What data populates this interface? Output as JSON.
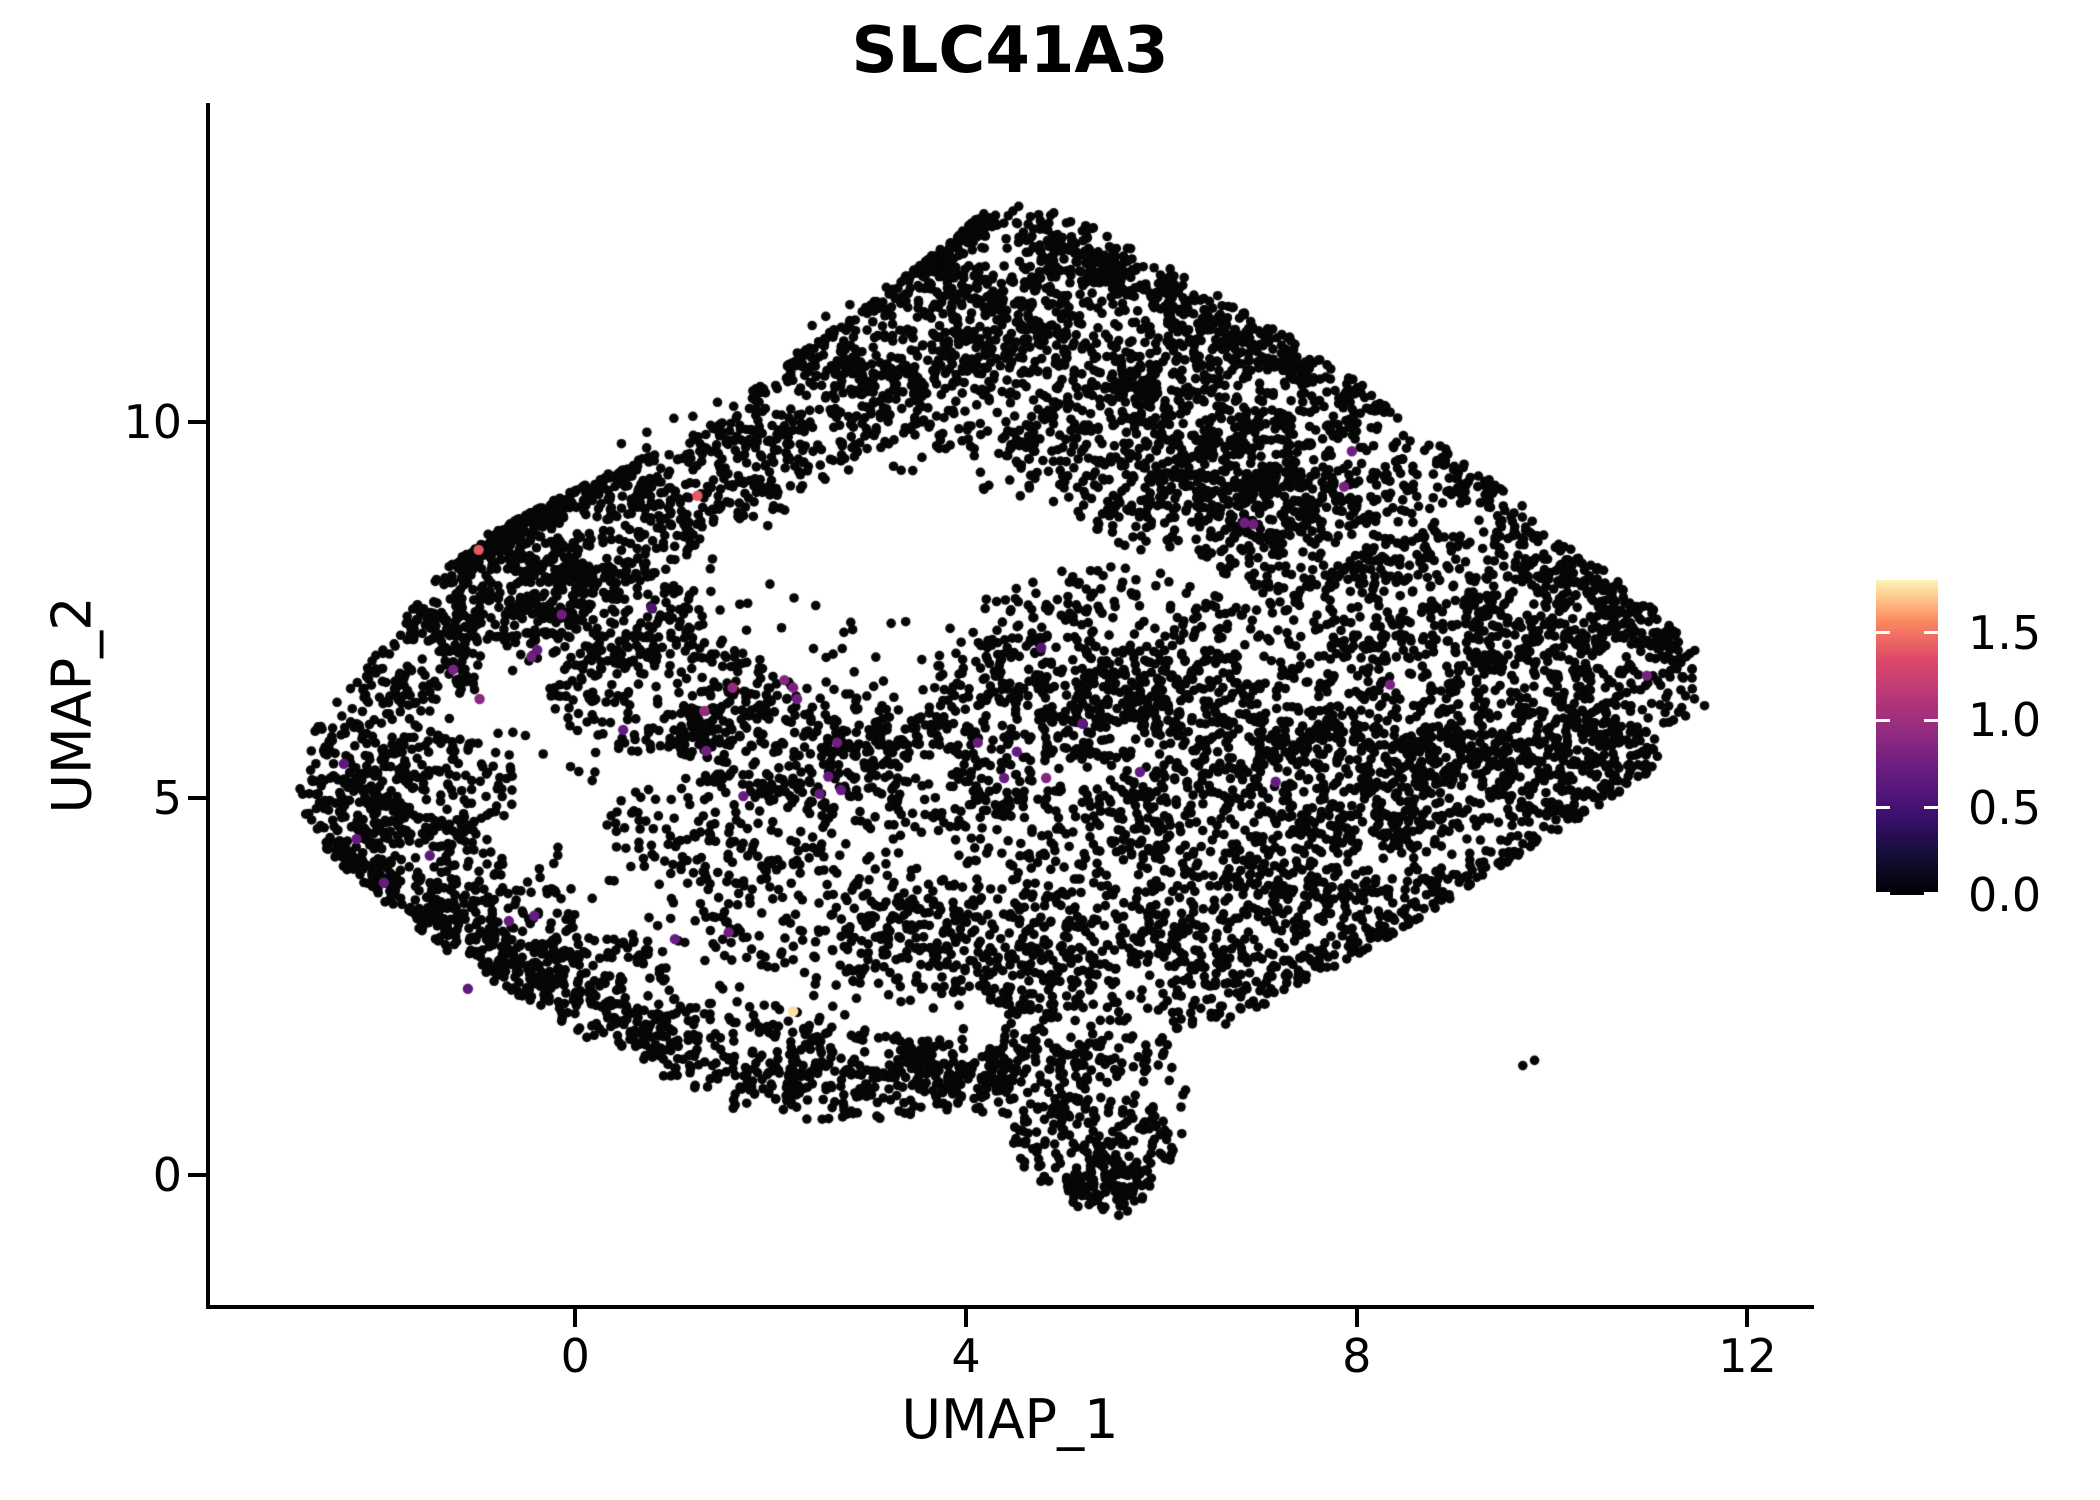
{
  "title": "SLC41A3",
  "axes": {
    "x_label": "UMAP_1",
    "y_label": "UMAP_2",
    "x_ticks": [
      {
        "value": 0,
        "label": "0"
      },
      {
        "value": 4,
        "label": "4"
      },
      {
        "value": 8,
        "label": "8"
      },
      {
        "value": 12,
        "label": "12"
      }
    ],
    "y_ticks": [
      {
        "value": 10,
        "label": "10"
      },
      {
        "value": 5,
        "label": "5"
      },
      {
        "value": 0,
        "label": "0"
      }
    ],
    "x_range": [
      -3.74,
      12.64
    ],
    "y_range": [
      -1.73,
      14.21
    ]
  },
  "colorbar": {
    "ticks": [
      {
        "value": 1.5,
        "label": "1.5"
      },
      {
        "value": 1.0,
        "label": "1.0"
      },
      {
        "value": 0.5,
        "label": "0.5"
      },
      {
        "value": 0.0,
        "label": "0.0"
      }
    ],
    "vmin": 0.0,
    "vmax": 1.8,
    "colormap": [
      [
        0,
        "#000004"
      ],
      [
        0.13,
        "#140e36"
      ],
      [
        0.25,
        "#3b0f70"
      ],
      [
        0.38,
        "#641a80"
      ],
      [
        0.5,
        "#8c2981"
      ],
      [
        0.63,
        "#b73779"
      ],
      [
        0.75,
        "#de4968"
      ],
      [
        0.87,
        "#fc8961"
      ],
      [
        0.94,
        "#fec488"
      ],
      [
        1,
        "#fcf4b5"
      ]
    ]
  },
  "chart_data": {
    "type": "scatter",
    "title": "SLC41A3",
    "xlabel": "UMAP_1",
    "ylabel": "UMAP_2",
    "xlim": [
      -3.74,
      12.64
    ],
    "ylim": [
      -1.73,
      14.21
    ],
    "grid": false,
    "legend_position": "right-colorbar",
    "description": "UMAP feature plot of SLC41A3 expression; ~11000 cells, nearly all with zero expression (black), sparse expressing cells colored by magma colormap 0-1.8",
    "point_radius_px": 4.8,
    "zero_color": "#060606",
    "seed": 11,
    "count_scale": 0.75,
    "background_count": 1100,
    "outline": [
      [
        -2.9,
        4.9
      ],
      [
        -2.65,
        6.0
      ],
      [
        -2.0,
        7.0
      ],
      [
        -1.4,
        8.0
      ],
      [
        -0.55,
        8.75
      ],
      [
        0.4,
        9.35
      ],
      [
        1.3,
        9.9
      ],
      [
        2.3,
        10.9
      ],
      [
        3.3,
        11.85
      ],
      [
        4.2,
        12.8
      ],
      [
        4.85,
        12.95
      ],
      [
        5.6,
        12.4
      ],
      [
        6.5,
        11.75
      ],
      [
        7.3,
        11.15
      ],
      [
        8.0,
        10.55
      ],
      [
        8.8,
        9.75
      ],
      [
        9.6,
        9.0
      ],
      [
        10.4,
        8.2
      ],
      [
        11.1,
        7.5
      ],
      [
        11.55,
        6.85
      ],
      [
        11.65,
        6.3
      ],
      [
        11.2,
        5.55
      ],
      [
        10.5,
        4.9
      ],
      [
        9.8,
        4.35
      ],
      [
        9.0,
        3.7
      ],
      [
        8.2,
        3.05
      ],
      [
        7.4,
        2.5
      ],
      [
        6.7,
        2.0
      ],
      [
        6.35,
        1.5
      ],
      [
        6.3,
        0.8
      ],
      [
        6.0,
        -0.1
      ],
      [
        5.6,
        -0.55
      ],
      [
        5.1,
        -0.5
      ],
      [
        4.65,
        -0.1
      ],
      [
        4.5,
        0.4
      ],
      [
        4.1,
        0.85
      ],
      [
        3.3,
        0.75
      ],
      [
        2.4,
        0.7
      ],
      [
        1.6,
        0.85
      ],
      [
        0.9,
        1.3
      ],
      [
        0.2,
        1.75
      ],
      [
        -0.5,
        2.3
      ],
      [
        -1.2,
        2.85
      ],
      [
        -1.8,
        3.45
      ],
      [
        -2.4,
        4.1
      ]
    ],
    "clusters": [
      [
        4.5,
        12.1,
        1.3,
        0.8,
        260
      ],
      [
        3.3,
        11.2,
        1.5,
        0.9,
        320
      ],
      [
        5.6,
        11.3,
        1.6,
        0.9,
        330
      ],
      [
        6.9,
        10.5,
        1.4,
        0.9,
        280
      ],
      [
        2.2,
        10.2,
        1.4,
        0.8,
        260
      ],
      [
        4.5,
        10.4,
        1.5,
        0.9,
        300
      ],
      [
        1.2,
        9.4,
        1.2,
        0.8,
        240
      ],
      [
        5.9,
        9.6,
        1.5,
        0.9,
        280
      ],
      [
        7.4,
        9.3,
        1.3,
        0.9,
        260
      ],
      [
        0.1,
        8.6,
        1.2,
        0.8,
        280
      ],
      [
        -0.9,
        7.8,
        1.1,
        0.8,
        300
      ],
      [
        0.2,
        7.4,
        1.1,
        0.7,
        260
      ],
      [
        -1.7,
        6.9,
        0.8,
        0.7,
        170
      ],
      [
        -2.2,
        5.5,
        0.75,
        0.85,
        160
      ],
      [
        -2.3,
        4.6,
        0.6,
        0.7,
        130
      ],
      [
        -1.6,
        4.0,
        0.9,
        0.8,
        180
      ],
      [
        -0.8,
        3.2,
        0.9,
        0.8,
        170
      ],
      [
        0.1,
        2.4,
        1.0,
        0.8,
        180
      ],
      [
        -1.4,
        5.2,
        0.8,
        0.7,
        150
      ],
      [
        0.9,
        6.4,
        1.2,
        0.8,
        260
      ],
      [
        2.2,
        5.8,
        1.3,
        0.8,
        270
      ],
      [
        3.5,
        5.3,
        1.2,
        0.8,
        260
      ],
      [
        1.5,
        4.6,
        1.2,
        0.8,
        200
      ],
      [
        2.7,
        3.4,
        1.4,
        0.9,
        240
      ],
      [
        4.1,
        3.0,
        1.4,
        0.9,
        260
      ],
      [
        5.5,
        2.7,
        1.4,
        0.9,
        260
      ],
      [
        6.8,
        3.3,
        1.3,
        0.9,
        260
      ],
      [
        7.9,
        4.0,
        1.2,
        0.9,
        250
      ],
      [
        1.6,
        1.7,
        1.1,
        0.6,
        170
      ],
      [
        3.0,
        1.3,
        1.2,
        0.6,
        170
      ],
      [
        4.4,
        1.4,
        1.1,
        0.6,
        160
      ],
      [
        5.3,
        0.4,
        0.85,
        0.7,
        230
      ],
      [
        5.5,
        -0.2,
        0.5,
        0.4,
        90
      ],
      [
        5.4,
        7.0,
        1.5,
        1.1,
        280
      ],
      [
        6.9,
        6.6,
        1.4,
        1.1,
        290
      ],
      [
        8.4,
        6.1,
        1.3,
        1.1,
        290
      ],
      [
        9.7,
        6.0,
        1.1,
        1.0,
        260
      ],
      [
        10.7,
        6.6,
        0.75,
        0.9,
        200
      ],
      [
        8.9,
        7.6,
        1.3,
        0.9,
        280
      ],
      [
        7.6,
        8.5,
        1.3,
        0.9,
        300
      ],
      [
        6.3,
        9.0,
        1.2,
        0.8,
        260
      ],
      [
        9.9,
        7.5,
        0.9,
        0.7,
        200
      ],
      [
        9.0,
        5.2,
        1.0,
        0.8,
        200
      ],
      [
        10.3,
        5.4,
        0.8,
        0.7,
        160
      ],
      [
        6.0,
        5.9,
        1.3,
        0.9,
        230
      ],
      [
        4.7,
        6.3,
        1.2,
        0.9,
        230
      ],
      [
        8.0,
        5.2,
        1.1,
        0.8,
        220
      ],
      [
        5.1,
        4.4,
        1.3,
        0.8,
        190
      ],
      [
        6.6,
        4.7,
        1.3,
        0.8,
        200
      ]
    ],
    "strips": [
      [
        -1.3,
        8.05,
        4.25,
        12.75,
        0.33,
        420
      ],
      [
        -2.55,
        4.35,
        1.1,
        1.55,
        0.4,
        280
      ],
      [
        1.3,
        1.1,
        6.1,
        1.6,
        0.45,
        230
      ],
      [
        4.6,
        12.6,
        8.3,
        10.15,
        0.5,
        300
      ],
      [
        8.7,
        9.7,
        11.35,
        6.85,
        0.5,
        260
      ],
      [
        11.2,
        5.6,
        6.6,
        1.95,
        0.5,
        280
      ]
    ],
    "voids": [
      [
        3.3,
        8.4,
        1.2,
        0.95
      ],
      [
        6.1,
        7.7,
        0.85,
        0.7
      ],
      [
        9.6,
        4.2,
        0.8,
        0.6
      ],
      [
        0.7,
        4.8,
        0.7,
        0.65
      ],
      [
        4.7,
        8.3,
        0.7,
        0.6
      ]
    ],
    "extra_zero_points": [
      [
        9.7,
        1.45
      ],
      [
        9.82,
        1.52
      ]
    ],
    "expressing_points": [
      [
        1.25,
        9.02,
        1.4
      ],
      [
        -0.99,
        8.3,
        1.4
      ],
      [
        2.23,
        2.17,
        1.75
      ],
      [
        0.78,
        7.53,
        0.55
      ],
      [
        -0.14,
        7.44,
        0.75
      ],
      [
        -0.39,
        6.97,
        0.7
      ],
      [
        -0.45,
        6.88,
        0.75
      ],
      [
        -1.25,
        6.71,
        0.8
      ],
      [
        -0.98,
        6.32,
        0.9
      ],
      [
        1.61,
        6.47,
        0.95
      ],
      [
        1.32,
        6.16,
        0.95
      ],
      [
        2.14,
        6.57,
        0.85
      ],
      [
        2.23,
        6.47,
        0.8
      ],
      [
        2.27,
        6.32,
        0.75
      ],
      [
        0.49,
        5.91,
        0.7
      ],
      [
        1.34,
        5.63,
        0.75
      ],
      [
        2.68,
        5.74,
        0.75
      ],
      [
        2.59,
        5.29,
        0.7
      ],
      [
        2.5,
        5.06,
        0.7
      ],
      [
        2.72,
        5.11,
        0.7
      ],
      [
        1.72,
        5.03,
        0.7
      ],
      [
        -2.37,
        5.46,
        0.65
      ],
      [
        -2.24,
        4.46,
        0.7
      ],
      [
        -1.49,
        4.24,
        0.65
      ],
      [
        -1.96,
        3.88,
        0.7
      ],
      [
        -0.68,
        3.37,
        0.7
      ],
      [
        -0.42,
        3.44,
        0.7
      ],
      [
        -1.1,
        2.47,
        0.65
      ],
      [
        1.02,
        3.13,
        0.7
      ],
      [
        1.57,
        3.22,
        0.75
      ],
      [
        7.95,
        9.61,
        0.75
      ],
      [
        7.87,
        9.14,
        0.8
      ],
      [
        6.85,
        8.66,
        0.75
      ],
      [
        6.94,
        8.64,
        0.75
      ],
      [
        4.77,
        7.0,
        0.6
      ],
      [
        8.34,
        6.51,
        0.8
      ],
      [
        5.19,
        5.99,
        0.65
      ],
      [
        4.12,
        5.74,
        0.7
      ],
      [
        4.52,
        5.62,
        0.7
      ],
      [
        4.39,
        5.27,
        0.7
      ],
      [
        4.82,
        5.27,
        0.85
      ],
      [
        5.78,
        5.35,
        0.7
      ],
      [
        7.17,
        5.22,
        0.7
      ],
      [
        10.97,
        6.63,
        0.8
      ]
    ]
  }
}
